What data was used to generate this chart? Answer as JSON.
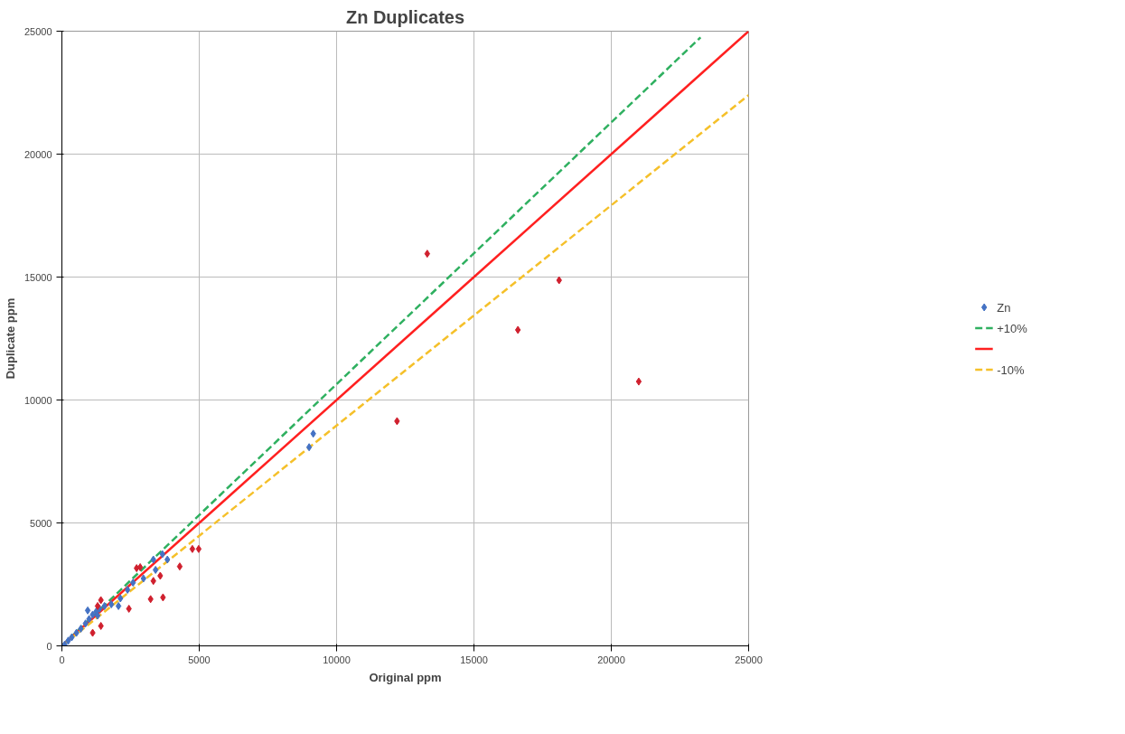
{
  "chart_data": {
    "type": "scatter",
    "title": "Zn Duplicates",
    "xlabel": "Original ppm",
    "ylabel": "Duplicate ppm",
    "xlim": [
      0,
      25000
    ],
    "ylim": [
      0,
      25000
    ],
    "xticks": [
      0,
      5000,
      10000,
      15000,
      20000,
      25000
    ],
    "yticks": [
      0,
      5000,
      10000,
      15000,
      20000,
      25000
    ],
    "grid": true,
    "legend": "right",
    "series": [
      {
        "name": "Zn",
        "marker": "diamond",
        "color": "#4472c4",
        "x": [
          100,
          230,
          360,
          530,
          690,
          860,
          990,
          1120,
          1250,
          1370,
          1300,
          940,
          1550,
          1800,
          2060,
          2130,
          2390,
          2590,
          2970,
          3410,
          3330,
          3660,
          3840,
          9000,
          9150
        ],
        "values": [
          50,
          210,
          350,
          530,
          700,
          910,
          1090,
          1270,
          1400,
          1510,
          1230,
          1440,
          1620,
          1690,
          1620,
          1930,
          2280,
          2570,
          2740,
          3090,
          3510,
          3730,
          3510,
          8080,
          8630
        ]
      },
      {
        "marker": "diamond",
        "color": "#d0202e",
        "x": [
          1120,
          1420,
          1420,
          1300,
          2440,
          2720,
          2850,
          3330,
          3580,
          3230,
          3680,
          4290,
          4750,
          4980,
          12200,
          13300,
          16600,
          18100,
          21000
        ],
        "values": [
          530,
          810,
          1860,
          1620,
          1510,
          3160,
          3200,
          2640,
          2850,
          1900,
          1970,
          3230,
          3940,
          3940,
          9140,
          15950,
          12850,
          14870,
          10750
        ]
      },
      {
        "name": "+10%",
        "type": "line",
        "line_style": "dashed",
        "color": "#2fb060",
        "x": [
          0,
          23250
        ],
        "values": [
          0,
          24750
        ]
      },
      {
        "type": "line",
        "line_style": "solid",
        "color": "#ff2020",
        "x": [
          0,
          25000
        ],
        "values": [
          0,
          25000
        ]
      },
      {
        "name": "-10%",
        "type": "line",
        "line_style": "dashed",
        "color": "#f5c02a",
        "x": [
          0,
          25000
        ],
        "values": [
          0,
          22400
        ]
      }
    ]
  }
}
